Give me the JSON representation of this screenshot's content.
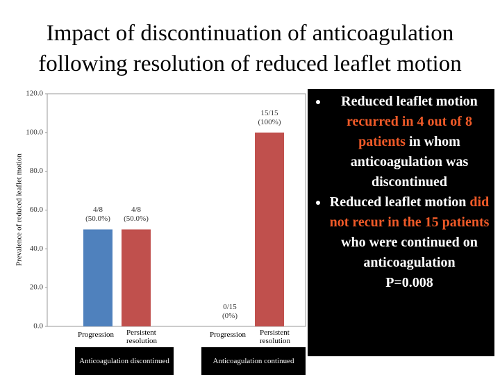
{
  "title": "Impact of discontinuation of anticoagulation following resolution of reduced leaflet motion",
  "chart_data": {
    "type": "bar",
    "y_label": "Prevalence of reduced leaflet motion",
    "categories": [
      "Progression",
      "Persistent resolution",
      "Progression",
      "Persistent resolution"
    ],
    "groups": [
      "Anticoagulation discontinued",
      "Anticoagulation continued"
    ],
    "values": [
      50,
      50,
      0,
      100
    ],
    "value_labels": [
      "4/8 (50.0%)",
      "4/8 (50.0%)",
      "0/15 (0%)",
      "15/15 (100%)"
    ],
    "colors": [
      "#4f81bd",
      "#c0504d",
      "#4f81bd",
      "#c0504d"
    ],
    "ylim": [
      0,
      120
    ],
    "yticks": [
      {
        "value": 0,
        "label": "0.0"
      },
      {
        "value": 20,
        "label": "20.0"
      },
      {
        "value": 40,
        "label": "40.0"
      },
      {
        "value": 60,
        "label": "60.0"
      },
      {
        "value": 80,
        "label": "80.0"
      },
      {
        "value": 100,
        "label": "100.0"
      },
      {
        "value": 120,
        "label": "120.0"
      }
    ],
    "grid": false
  },
  "side_text": {
    "bullets": [
      [
        {
          "text": "Reduced leaflet motion ",
          "color": "#ffffff"
        },
        {
          "text": "recurred in 4 out of 8 patients",
          "color": "#f05a28"
        },
        {
          "text": " in whom anticoagulation was discontinued",
          "color": "#ffffff"
        }
      ],
      [
        {
          "text": "Reduced leaflet motion ",
          "color": "#ffffff"
        },
        {
          "text": "did not recur in the 15 patients",
          "color": "#f05a28"
        },
        {
          "text": " who were continued on anticoagulation",
          "color": "#ffffff"
        }
      ]
    ],
    "p_value": "P=0.008"
  }
}
